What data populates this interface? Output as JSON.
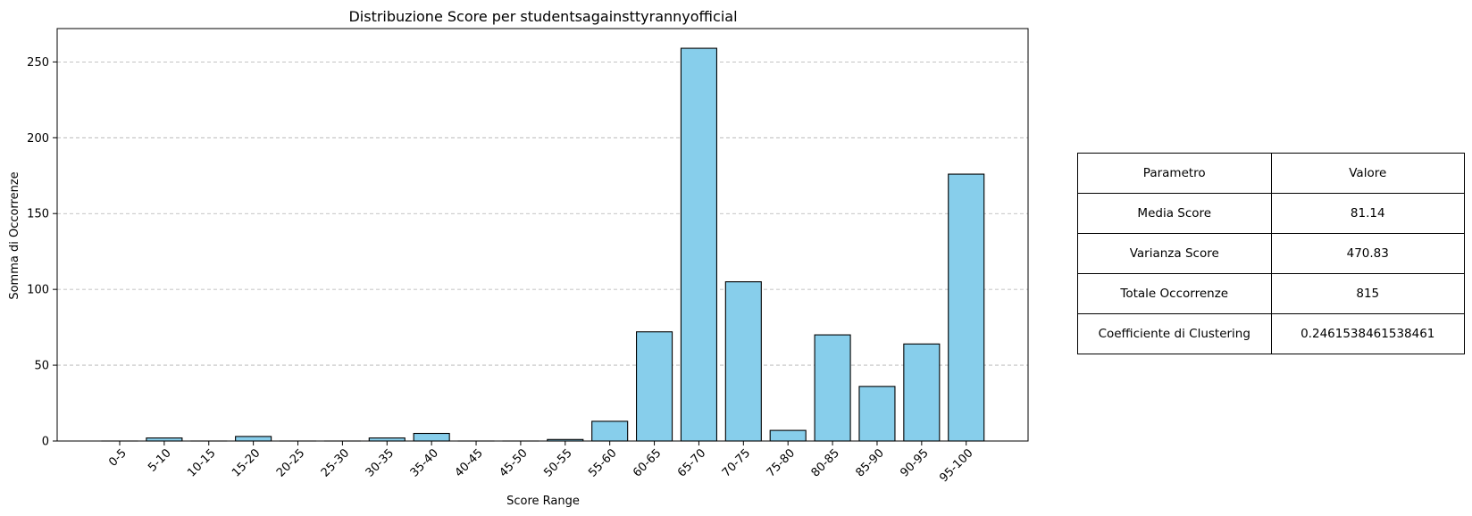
{
  "chart_data": {
    "type": "bar",
    "title": "Distribuzione Score per studentsagainsttyrannyofficial",
    "xlabel": "Score Range",
    "ylabel": "Somma di Occorrenze",
    "categories": [
      "0-5",
      "5-10",
      "10-15",
      "15-20",
      "20-25",
      "25-30",
      "30-35",
      "35-40",
      "40-45",
      "45-50",
      "50-55",
      "55-60",
      "60-65",
      "65-70",
      "70-75",
      "75-80",
      "80-85",
      "85-90",
      "90-95",
      "95-100"
    ],
    "values": [
      0,
      2,
      0,
      3,
      0,
      0,
      2,
      5,
      0,
      0,
      1,
      13,
      72,
      259,
      105,
      7,
      70,
      36,
      64,
      176
    ],
    "ylim": [
      0,
      272
    ],
    "yticks": [
      0,
      50,
      100,
      150,
      200,
      250
    ],
    "grid": "y-dashed",
    "colors": {
      "bar_fill": "#87ceeb",
      "bar_edge": "#000000",
      "grid": "#b0b0b0"
    }
  },
  "table": {
    "header": [
      "Parametro",
      "Valore"
    ],
    "rows": [
      [
        "Media Score",
        "81.14"
      ],
      [
        "Varianza Score",
        "470.83"
      ],
      [
        "Totale Occorrenze",
        "815"
      ],
      [
        "Coefficiente di Clustering",
        "0.2461538461538461"
      ]
    ]
  }
}
